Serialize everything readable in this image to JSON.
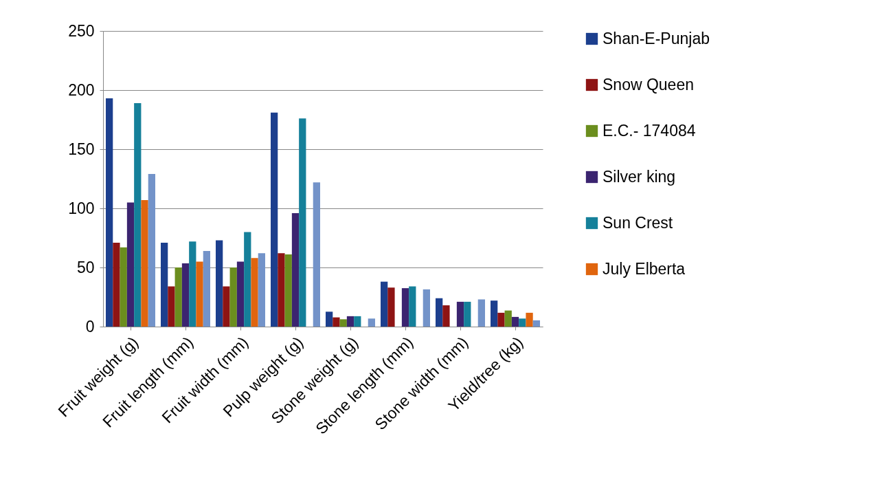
{
  "chart_data": {
    "type": "bar",
    "categories": [
      "Fruit weight (g)",
      "Fruit length (mm)",
      "Fruit width (mm)",
      "Pulp weight (g)",
      "Stone weight (g)",
      "Stone length (mm)",
      "Stone width (mm)",
      "Yield/tree (kg)"
    ],
    "series": [
      {
        "name": "Shan-E-Punjab",
        "color": "#1c3f8e",
        "values": [
          193,
          71,
          73,
          181,
          12.6,
          38,
          24,
          22
        ]
      },
      {
        "name": "Snow Queen",
        "color": "#8e1414",
        "values": [
          71,
          34,
          34,
          62,
          7.8,
          33,
          18,
          11.7
        ]
      },
      {
        "name": "E.C.- 174084",
        "color": "#6b8e1e",
        "values": [
          67,
          50,
          50,
          61,
          6.2,
          null,
          null,
          13.6
        ]
      },
      {
        "name": "Silver king",
        "color": "#3b2470",
        "values": [
          105,
          53.5,
          55,
          96,
          8.8,
          32.5,
          21,
          8.2
        ]
      },
      {
        "name": "Sun Crest",
        "color": "#15809a",
        "values": [
          189,
          72,
          80,
          176,
          8.8,
          34,
          21,
          6.8
        ]
      },
      {
        "name": "July Elberta",
        "color": "#e0650e",
        "values": [
          107,
          55,
          58,
          null,
          null,
          null,
          null,
          11.7
        ]
      },
      {
        "color": "#7393c9",
        "values": [
          129,
          64,
          62,
          122,
          6.8,
          31.5,
          23,
          5.3
        ]
      }
    ],
    "ylim": [
      0,
      250
    ],
    "yticks": [
      0,
      50,
      100,
      150,
      200,
      250
    ],
    "grid": "y",
    "legend": "right"
  }
}
